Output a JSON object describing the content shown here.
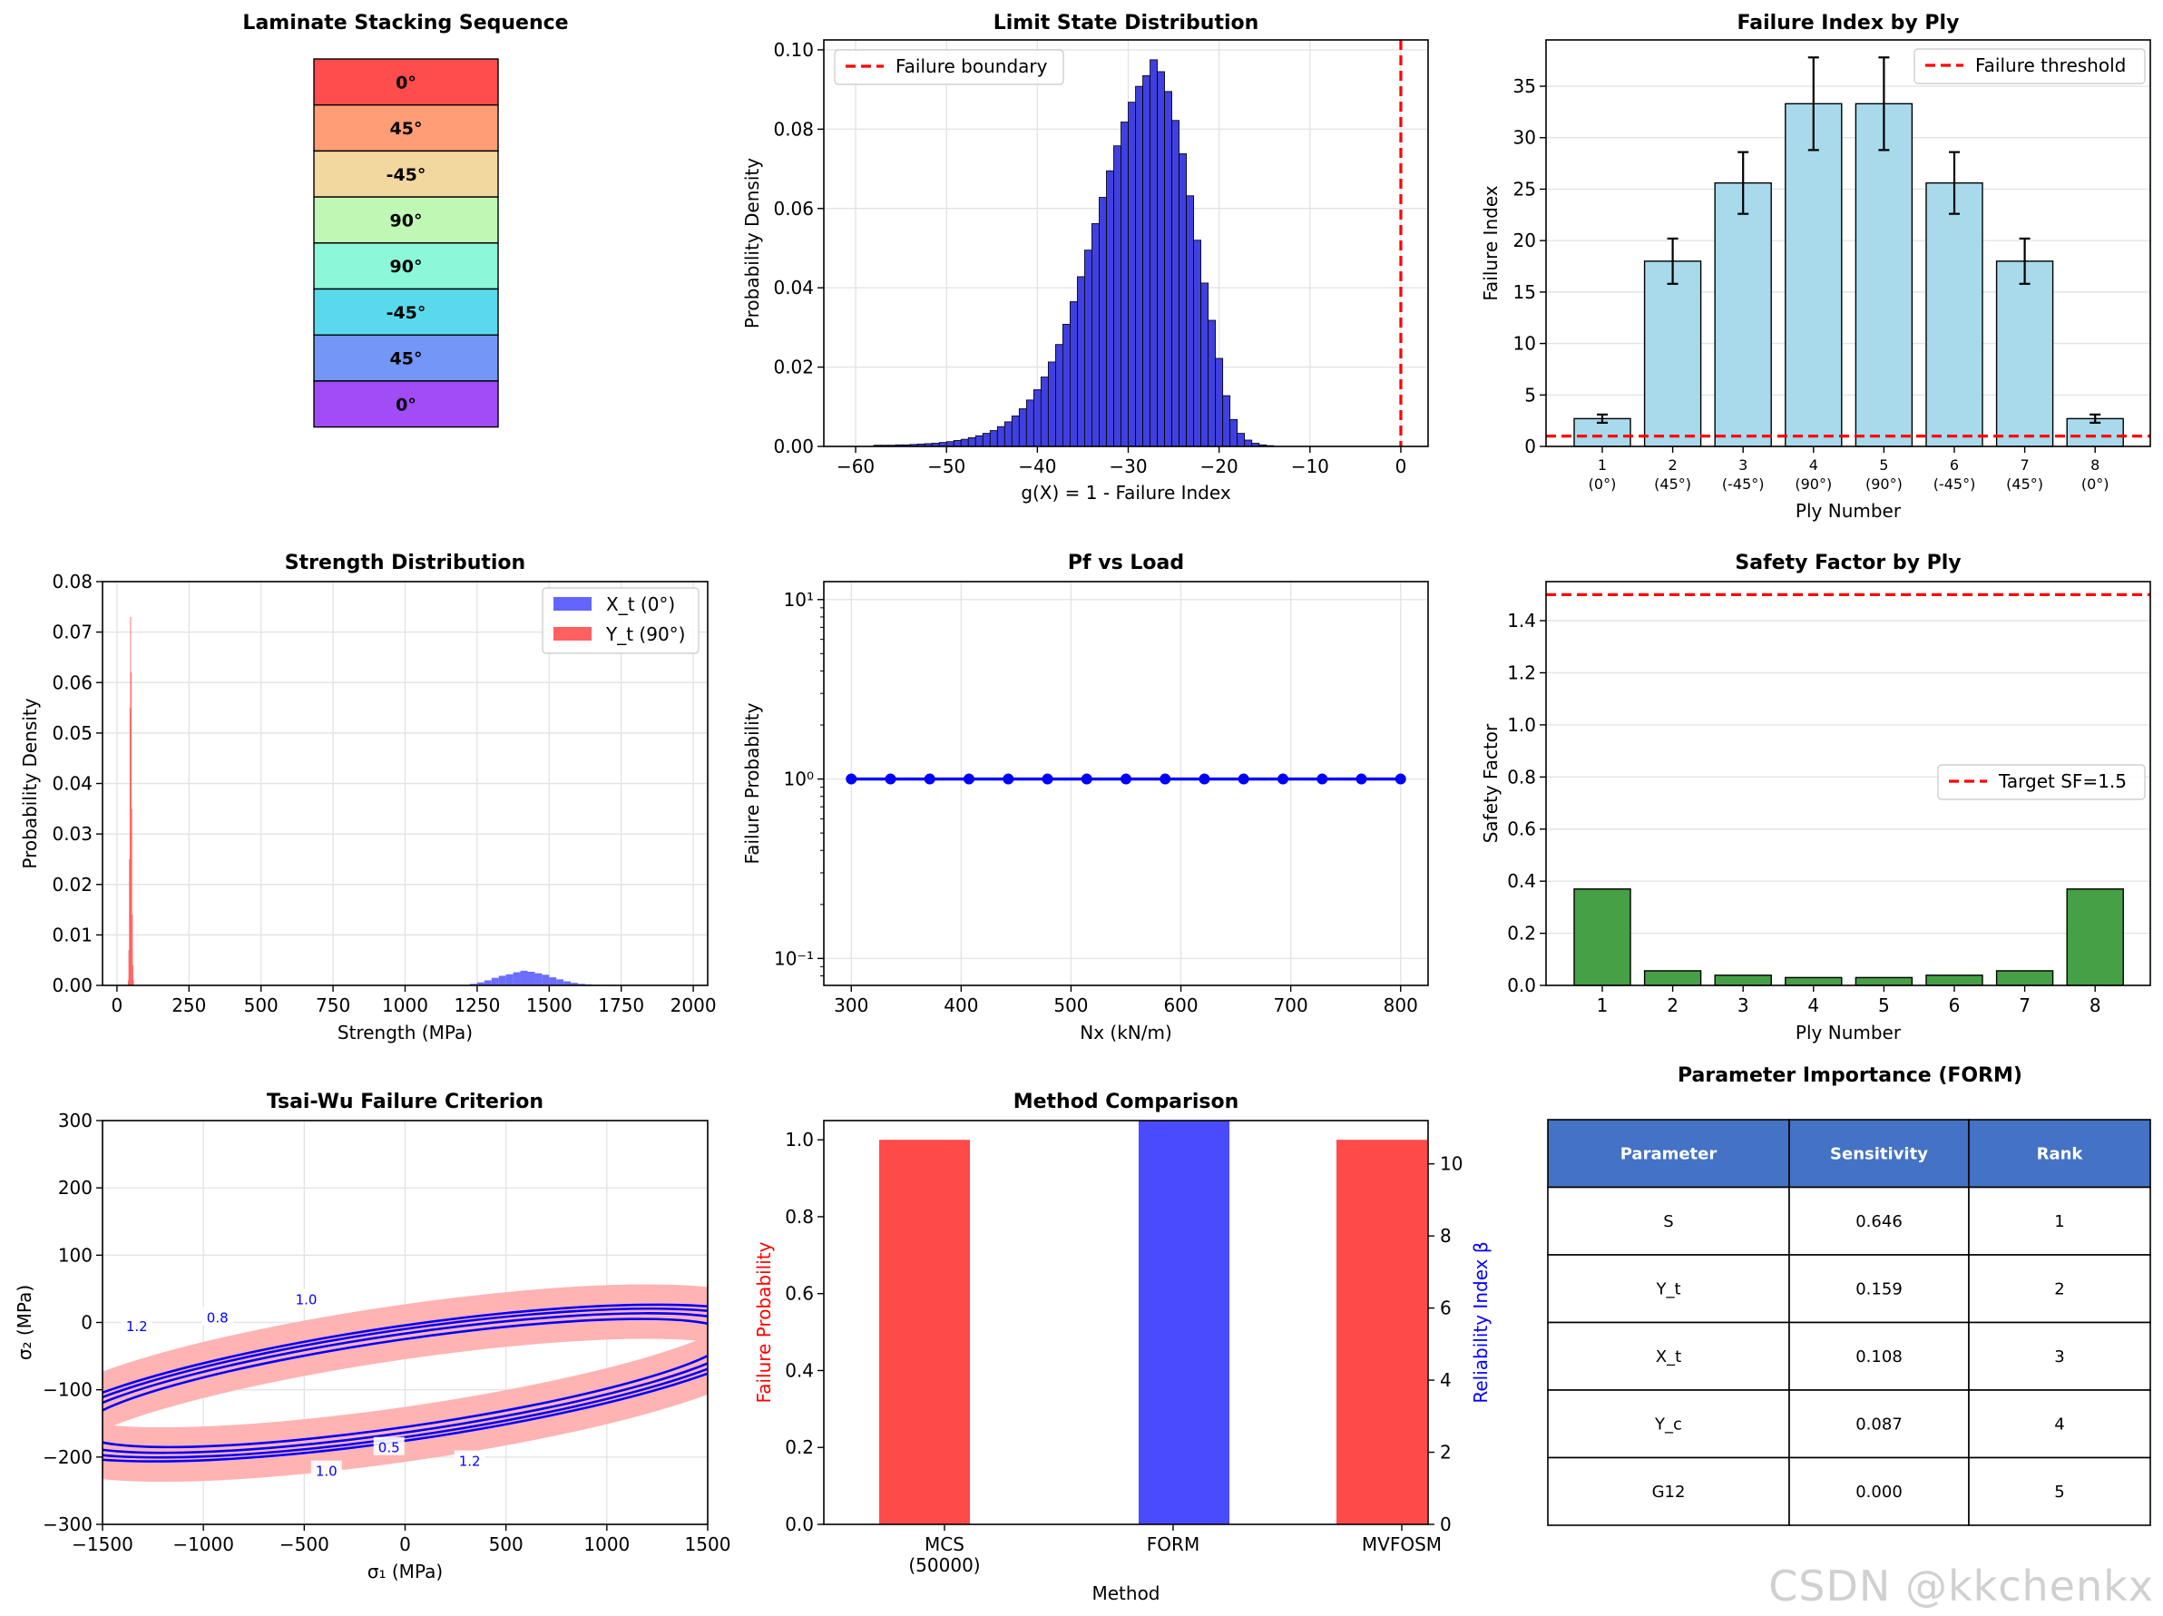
{
  "watermark": "CSDN @kkchenkx",
  "colors": {
    "red": "#ff0000",
    "blue": "#0000ff",
    "skyblue": "#a8daec",
    "green": "#46a046",
    "hist_blue": "#4040e0",
    "hist_red": "#ff6060",
    "header_blue": "#4472c4"
  },
  "chart_data": [
    {
      "type": "table",
      "title": "Laminate Stacking Sequence",
      "layers": [
        {
          "label": "0°",
          "color": "#ff4c4c"
        },
        {
          "label": "45°",
          "color": "#ff9d76"
        },
        {
          "label": "-45°",
          "color": "#f2d79e"
        },
        {
          "label": "90°",
          "color": "#bff7b4"
        },
        {
          "label": "90°",
          "color": "#8cf7d9"
        },
        {
          "label": "-45°",
          "color": "#5ad9ed"
        },
        {
          "label": "45°",
          "color": "#7497f7"
        },
        {
          "label": "0°",
          "color": "#a24cf7"
        }
      ]
    },
    {
      "type": "bar",
      "title": "Limit State Distribution",
      "xlabel": "g(X) = 1 - Failure Index",
      "ylabel": "Probability Density",
      "xlim": [
        -63.5,
        3
      ],
      "ylim": [
        0,
        0.1025
      ],
      "xticks": [
        -60,
        -50,
        -40,
        -30,
        -20,
        -10,
        0
      ],
      "xtick_labels": [
        "−60",
        "−50",
        "−40",
        "−30",
        "−20",
        "−10",
        "0"
      ],
      "yticks": [
        0,
        0.02,
        0.04,
        0.06,
        0.08,
        0.1
      ],
      "ytick_labels": [
        "0.00",
        "0.02",
        "0.04",
        "0.06",
        "0.08",
        "0.10"
      ],
      "bin_start": -58,
      "bin_width": 0.8,
      "values": [
        0.0003,
        0.0003,
        0.0003,
        0.0004,
        0.0004,
        0.0005,
        0.0006,
        0.0007,
        0.0008,
        0.001,
        0.0012,
        0.0015,
        0.0018,
        0.0022,
        0.0027,
        0.0033,
        0.004,
        0.005,
        0.0062,
        0.0077,
        0.0095,
        0.0117,
        0.0143,
        0.0175,
        0.0213,
        0.0257,
        0.0308,
        0.0365,
        0.0428,
        0.0495,
        0.0562,
        0.0628,
        0.0695,
        0.0758,
        0.0818,
        0.0868,
        0.0908,
        0.0935,
        0.0975,
        0.0945,
        0.0895,
        0.0822,
        0.0738,
        0.0632,
        0.052,
        0.0412,
        0.0318,
        0.0222,
        0.0128,
        0.0068,
        0.0033,
        0.0016,
        0.0008,
        0.0004,
        0.0002
      ],
      "vline": {
        "x": 0,
        "label": "Failure boundary"
      }
    },
    {
      "type": "bar",
      "title": "Failure Index by Ply",
      "xlabel": "Ply Number",
      "ylabel": "Failure Index",
      "ylim": [
        0,
        39.5
      ],
      "yticks": [
        0,
        5,
        10,
        15,
        20,
        25,
        30,
        35
      ],
      "categories": [
        "1",
        "2",
        "3",
        "4",
        "5",
        "6",
        "7",
        "8"
      ],
      "category_sublabels": [
        "(0°)",
        "(45°)",
        "(-45°)",
        "(90°)",
        "(90°)",
        "(-45°)",
        "(45°)",
        "(0°)"
      ],
      "values": [
        2.7,
        18.0,
        25.6,
        33.3,
        33.3,
        25.6,
        18.0,
        2.7
      ],
      "errors": [
        0.4,
        2.2,
        3.0,
        4.5,
        4.5,
        3.0,
        2.2,
        0.4
      ],
      "hline": {
        "y": 1.0,
        "label": "Failure threshold"
      }
    },
    {
      "type": "bar",
      "title": "Strength Distribution",
      "xlabel": "Strength (MPa)",
      "ylabel": "Probability Density",
      "xlim": [
        -50,
        2050
      ],
      "ylim": [
        0,
        0.08
      ],
      "xticks": [
        0,
        250,
        500,
        750,
        1000,
        1250,
        1500,
        1750,
        2000
      ],
      "yticks": [
        0,
        0.01,
        0.02,
        0.03,
        0.04,
        0.05,
        0.06,
        0.07,
        0.08
      ],
      "ytick_labels": [
        "0.00",
        "0.01",
        "0.02",
        "0.03",
        "0.04",
        "0.05",
        "0.06",
        "0.07",
        "0.08"
      ],
      "series": [
        {
          "name": "X_t (0°)",
          "color": "#6464ff",
          "bin_start": 1200,
          "bin_width": 25,
          "values": [
            0.0001,
            0.0003,
            0.0006,
            0.001,
            0.0015,
            0.0019,
            0.0022,
            0.0026,
            0.0029,
            0.0027,
            0.0024,
            0.0021,
            0.0016,
            0.0012,
            0.0008,
            0.0005,
            0.0003,
            0.0002,
            0.0001,
            0.0001,
            0.0001
          ]
        },
        {
          "name": "Y_t (90°)",
          "color": "#ff6060",
          "bin_start": 38,
          "bin_width": 2,
          "values": [
            0.001,
            0.007,
            0.025,
            0.055,
            0.073,
            0.062,
            0.035,
            0.014,
            0.004,
            0.001
          ]
        }
      ]
    },
    {
      "type": "line",
      "title": "Pf vs Load",
      "xlabel": "Nx (kN/m)",
      "ylabel": "Failure Probability",
      "yscale": "log",
      "xlim": [
        275,
        825
      ],
      "ylim_log10": [
        -1.15,
        1.1
      ],
      "xticks": [
        300,
        400,
        500,
        600,
        700,
        800
      ],
      "yticks_log10": [
        -1,
        0,
        1
      ],
      "ytick_labels": [
        "10⁻¹",
        "10⁰",
        "10¹"
      ],
      "x": [
        300,
        335.7,
        371.4,
        407.1,
        442.9,
        478.6,
        514.3,
        550,
        585.7,
        621.4,
        657.1,
        692.9,
        728.6,
        764.3,
        800
      ],
      "y": [
        1,
        1,
        1,
        1,
        1,
        1,
        1,
        1,
        1,
        1,
        1,
        1,
        1,
        1,
        1
      ]
    },
    {
      "type": "bar",
      "title": "Safety Factor by Ply",
      "xlabel": "Ply Number",
      "ylabel": "Safety Factor",
      "ylim": [
        0,
        1.55
      ],
      "yticks": [
        0,
        0.2,
        0.4,
        0.6,
        0.8,
        1.0,
        1.2,
        1.4
      ],
      "ytick_labels": [
        "0.0",
        "0.2",
        "0.4",
        "0.6",
        "0.8",
        "1.0",
        "1.2",
        "1.4"
      ],
      "categories": [
        "1",
        "2",
        "3",
        "4",
        "5",
        "6",
        "7",
        "8"
      ],
      "values": [
        0.37,
        0.056,
        0.039,
        0.03,
        0.03,
        0.039,
        0.056,
        0.37
      ],
      "hline": {
        "y": 1.5,
        "label": "Target SF=1.5"
      }
    },
    {
      "type": "scatter",
      "title": "Tsai-Wu Failure Criterion",
      "xlabel": "σ₁ (MPa)",
      "ylabel": "σ₂ (MPa)",
      "xlim": [
        -1500,
        1500
      ],
      "ylim": [
        -300,
        300
      ],
      "xticks": [
        -1500,
        -1000,
        -500,
        0,
        500,
        1000,
        1500
      ],
      "xtick_labels": [
        "−1500",
        "−1000",
        "−500",
        "0",
        "500",
        "1000",
        "1500"
      ],
      "yticks": [
        -300,
        -200,
        -100,
        0,
        100,
        200,
        300
      ],
      "ytick_labels": [
        "−300",
        "−200",
        "−100",
        "0",
        "100",
        "200",
        "300"
      ],
      "contour_levels": [
        0.5,
        0.8,
        1.0,
        1.2
      ],
      "contour_labels": [
        {
          "text": "1.2",
          "x": -1330,
          "y": -5
        },
        {
          "text": "0.8",
          "x": -930,
          "y": 8
        },
        {
          "text": "1.0",
          "x": -490,
          "y": 35
        },
        {
          "text": "0.5",
          "x": -80,
          "y": -185
        },
        {
          "text": "1.0",
          "x": -390,
          "y": -220
        },
        {
          "text": "1.2",
          "x": 320,
          "y": -205
        }
      ]
    },
    {
      "type": "bar",
      "title": "Method Comparison",
      "xlabel": "Method",
      "ylabel": "Failure Probability",
      "ylabel_right": "Reliability Index β",
      "categories": [
        "MCS\n(50000)",
        "FORM",
        "MVFOSM"
      ],
      "ylim": [
        0,
        1.05
      ],
      "yticks": [
        0,
        0.2,
        0.4,
        0.6,
        0.8,
        1.0
      ],
      "ytick_labels": [
        "0.0",
        "0.2",
        "0.4",
        "0.6",
        "0.8",
        "1.0"
      ],
      "ylim_right": [
        0,
        11.2
      ],
      "yticks_right": [
        0,
        2,
        4,
        6,
        8,
        10
      ],
      "pf_values": [
        1.0,
        1.0
      ],
      "pf_categories": [
        "MCS\n(50000)",
        "MVFOSM"
      ],
      "beta_values": [
        11.2
      ],
      "beta_categories": [
        "FORM"
      ]
    },
    {
      "type": "table",
      "title": "Parameter Importance (FORM)",
      "columns": [
        "Parameter",
        "Sensitivity",
        "Rank"
      ],
      "rows": [
        [
          "S",
          "0.646",
          "1"
        ],
        [
          "Y_t",
          "0.159",
          "2"
        ],
        [
          "X_t",
          "0.108",
          "3"
        ],
        [
          "Y_c",
          "0.087",
          "4"
        ],
        [
          "G12",
          "0.000",
          "5"
        ]
      ]
    }
  ]
}
